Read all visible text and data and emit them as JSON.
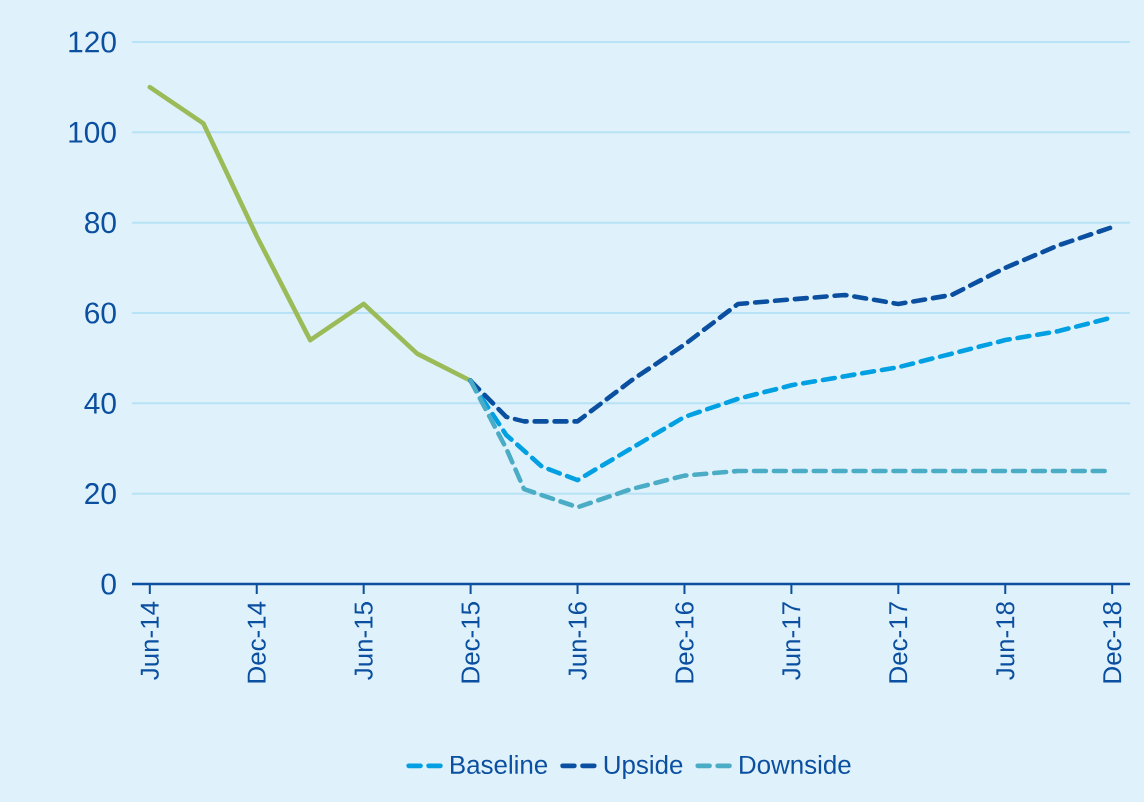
{
  "chart_data": {
    "type": "line",
    "x": [
      "2014-06",
      "2014-09",
      "2014-12",
      "2015-03",
      "2015-06",
      "2015-09",
      "2015-12"
    ],
    "series": [
      {
        "color": "#9bbb59",
        "line_style": "solid",
        "values": [
          110,
          102,
          77,
          54,
          62,
          51,
          45
        ]
      },
      {
        "name": "Baseline",
        "color": "#00a0e3",
        "line_style": "dashed",
        "x": [
          "2015-12",
          "2016-02",
          "2016-04",
          "2016-06",
          "2016-09",
          "2016-12",
          "2017-03",
          "2017-06",
          "2017-09",
          "2017-12",
          "2018-03",
          "2018-06",
          "2018-09",
          "2018-12"
        ],
        "values": [
          45,
          33,
          26,
          23,
          30,
          37,
          41,
          44,
          46,
          48,
          51,
          54,
          56,
          59
        ]
      },
      {
        "name": "Upside",
        "color": "#0b4fa0",
        "line_style": "dashed",
        "x": [
          "2015-12",
          "2016-02",
          "2016-03",
          "2016-06",
          "2016-09",
          "2016-12",
          "2017-03",
          "2017-06",
          "2017-09",
          "2017-12",
          "2018-03",
          "2018-06",
          "2018-09",
          "2018-12"
        ],
        "values": [
          45,
          37,
          36,
          36,
          45,
          53,
          62,
          63,
          64,
          62,
          64,
          70,
          75,
          79
        ]
      },
      {
        "name": "Downside",
        "color": "#4bacc6",
        "line_style": "dashed",
        "x": [
          "2015-12",
          "2016-02",
          "2016-03",
          "2016-06",
          "2016-09",
          "2016-12",
          "2017-03",
          "2017-06",
          "2017-09",
          "2017-12",
          "2018-03",
          "2018-06",
          "2018-09",
          "2018-12"
        ],
        "values": [
          45,
          30,
          21,
          17,
          21,
          24,
          25,
          25,
          25,
          25,
          25,
          25,
          25,
          25
        ]
      }
    ],
    "xlim": [
      "2014-05",
      "2019-01"
    ],
    "xticks": [
      {
        "value": "2014-06",
        "label": "Jun-14"
      },
      {
        "value": "2014-12",
        "label": "Dec-14"
      },
      {
        "value": "2015-06",
        "label": "Jun-15"
      },
      {
        "value": "2015-12",
        "label": "Dec-15"
      },
      {
        "value": "2016-06",
        "label": "Jun-16"
      },
      {
        "value": "2016-12",
        "label": "Dec-16"
      },
      {
        "value": "2017-06",
        "label": "Jun-17"
      },
      {
        "value": "2017-12",
        "label": "Dec-17"
      },
      {
        "value": "2018-06",
        "label": "Jun-18"
      },
      {
        "value": "2018-12",
        "label": "Dec-18"
      }
    ],
    "ylim": [
      0,
      120
    ],
    "yticks": [
      0,
      20,
      40,
      60,
      80,
      100,
      120
    ],
    "grid": "y",
    "legend": "bottom",
    "marker": "none"
  }
}
